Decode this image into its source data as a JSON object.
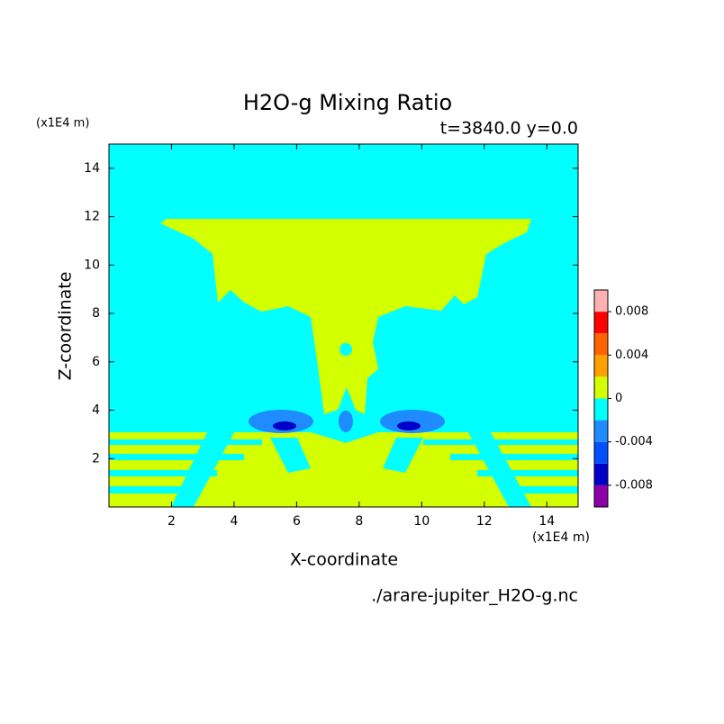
{
  "chart_data": {
    "type": "contour",
    "title": "H2O-g Mixing Ratio",
    "subtitle": "t=3840.0 y=0.0",
    "x_label": "X-coordinate",
    "y_label": "Z-coordinate",
    "x_unit": "(x1E4 m)",
    "y_unit": "(x1E4 m)",
    "footnote": "./arare-jupiter_H2O-g.nc",
    "xlim": [
      0,
      15
    ],
    "ylim": [
      0,
      15
    ],
    "xticks": [
      2,
      4,
      6,
      8,
      10,
      12,
      14
    ],
    "yticks": [
      2,
      4,
      6,
      8,
      10,
      12,
      14
    ],
    "levels": [
      -0.01,
      -0.008,
      -0.006,
      -0.004,
      -0.002,
      0,
      0.002,
      0.004,
      0.006,
      0.008,
      0.01
    ],
    "colors": [
      "#8c00a8",
      "#0000c8",
      "#0050ff",
      "#1e8cff",
      "#00ffff",
      "#d4ff00",
      "#ffa000",
      "#ff6400",
      "#ff0000",
      "#ffb0b0"
    ],
    "colorbar_ticks": [
      -0.008,
      -0.004,
      0,
      0.004,
      0.008
    ]
  }
}
